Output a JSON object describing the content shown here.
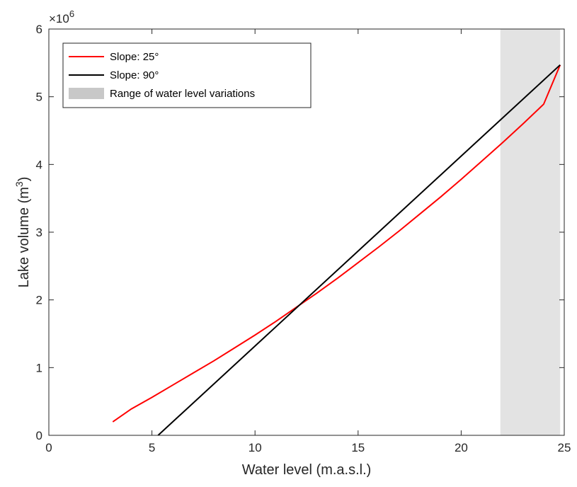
{
  "chart_data": {
    "type": "line",
    "xlabel": "Water level (m.a.s.l.)",
    "ylabel_main": "Lake volume (m",
    "ylabel_sup": "3",
    "ylabel_close": ")",
    "y_multiplier": {
      "base": "×10",
      "exponent": "6"
    },
    "xlim": [
      0,
      25
    ],
    "ylim": [
      0,
      6
    ],
    "x_ticks": [
      0,
      5,
      10,
      15,
      20,
      25
    ],
    "y_ticks": [
      0,
      1,
      2,
      3,
      4,
      5,
      6
    ],
    "y_tick_scale": 1000000,
    "grid": false,
    "legend_position": "top-left",
    "shaded_region": {
      "name": "Range of water level variations",
      "x_start": 21.9,
      "x_end": 24.8,
      "color": "#e3e3e3",
      "legend_color": "#c8c8c8"
    },
    "series": [
      {
        "name": "Slope: 25°",
        "color": "#ff0000",
        "x": [
          3.1,
          4,
          5,
          6,
          7,
          8,
          9,
          10,
          11,
          12,
          13,
          14,
          15,
          16,
          17,
          18,
          19,
          20,
          21,
          22,
          23,
          24,
          24.8
        ],
        "y": [
          0.2,
          0.39,
          0.56,
          0.74,
          0.92,
          1.1,
          1.29,
          1.48,
          1.68,
          1.89,
          2.1,
          2.32,
          2.55,
          2.78,
          3.02,
          3.27,
          3.52,
          3.78,
          4.05,
          4.32,
          4.6,
          4.89,
          5.47
        ]
      },
      {
        "name": "Slope: 90°",
        "color": "#000000",
        "x": [
          5.3,
          24.8
        ],
        "y": [
          0.0,
          5.47
        ]
      }
    ]
  }
}
